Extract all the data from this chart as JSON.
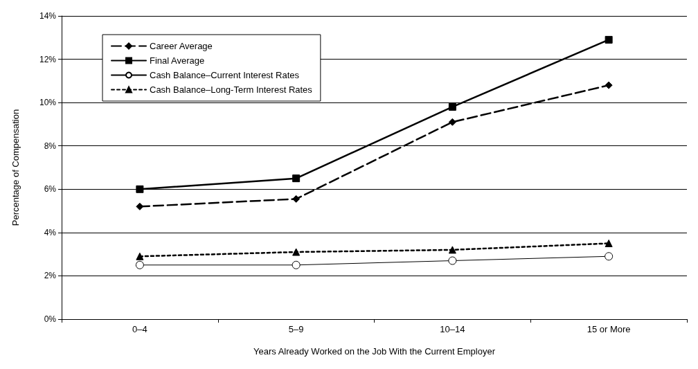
{
  "chart_data": {
    "type": "line",
    "xlabel": "Years Already Worked on the Job With the Current Employer",
    "ylabel": "Percentage of Compensation",
    "categories": [
      "0–4",
      "5–9",
      "10–14",
      "15 or More"
    ],
    "series": [
      {
        "name": "Career Average",
        "color": "#000000",
        "values": [
          5.2,
          5.55,
          9.1,
          10.8
        ],
        "marker": "diamond",
        "line_style": "dashed"
      },
      {
        "name": "Final Average",
        "color": "#000000",
        "values": [
          6.0,
          6.5,
          9.8,
          12.9
        ],
        "marker": "square",
        "line_style": "solid"
      },
      {
        "name": "Cash Balance–Current Interest Rates",
        "color": "#000000",
        "values": [
          2.5,
          2.5,
          2.7,
          2.9
        ],
        "marker": "circle",
        "line_style": "solid"
      },
      {
        "name": "Cash Balance–Long-Term Interest Rates",
        "color": "#000000",
        "values": [
          2.9,
          3.1,
          3.2,
          3.5
        ],
        "marker": "triangle",
        "line_style": "dotted"
      }
    ],
    "ylim": [
      0,
      14
    ],
    "yticks": [
      {
        "value": 0,
        "label": "0%"
      },
      {
        "value": 2,
        "label": "2%"
      },
      {
        "value": 4,
        "label": "4%"
      },
      {
        "value": 6,
        "label": "6%"
      },
      {
        "value": 8,
        "label": "8%"
      },
      {
        "value": 10,
        "label": "10%"
      },
      {
        "value": 12,
        "label": "12%"
      },
      {
        "value": 14,
        "label": "14%"
      }
    ],
    "grid": "y",
    "legend": "top left"
  }
}
